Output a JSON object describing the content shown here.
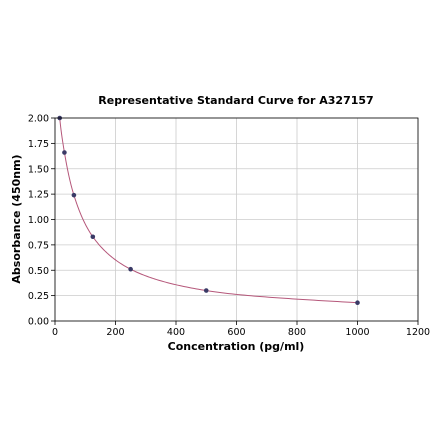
{
  "chart_data": {
    "type": "scatter",
    "title": "Representative Standard Curve for A327157",
    "xlabel": "Concentration (pg/ml)",
    "ylabel": "Absorbance (450nm)",
    "xlim": [
      0,
      1200
    ],
    "ylim": [
      0.0,
      2.0
    ],
    "x_ticks": [
      0,
      200,
      400,
      600,
      800,
      1000,
      1200
    ],
    "y_ticks": [
      0.0,
      0.25,
      0.5,
      0.75,
      1.0,
      1.25,
      1.5,
      1.75,
      2.0
    ],
    "x_tick_labels": [
      "0",
      "200",
      "400",
      "600",
      "800",
      "1000",
      "1200"
    ],
    "y_tick_labels": [
      "0.00",
      "0.25",
      "0.50",
      "0.75",
      "1.00",
      "1.25",
      "1.50",
      "1.75",
      "2.00"
    ],
    "grid": true,
    "series": [
      {
        "points": [
          {
            "x": 15.6,
            "y": 2.0
          },
          {
            "x": 31.2,
            "y": 1.66
          },
          {
            "x": 62.5,
            "y": 1.24
          },
          {
            "x": 125,
            "y": 0.83
          },
          {
            "x": 250,
            "y": 0.51
          },
          {
            "x": 500,
            "y": 0.3
          },
          {
            "x": 1000,
            "y": 0.18
          }
        ],
        "fit_curve": true
      }
    ],
    "colors": {
      "curve": "#b5577a",
      "points": "#3a3a66",
      "grid": "#cccccc",
      "axes": "#000000"
    }
  }
}
